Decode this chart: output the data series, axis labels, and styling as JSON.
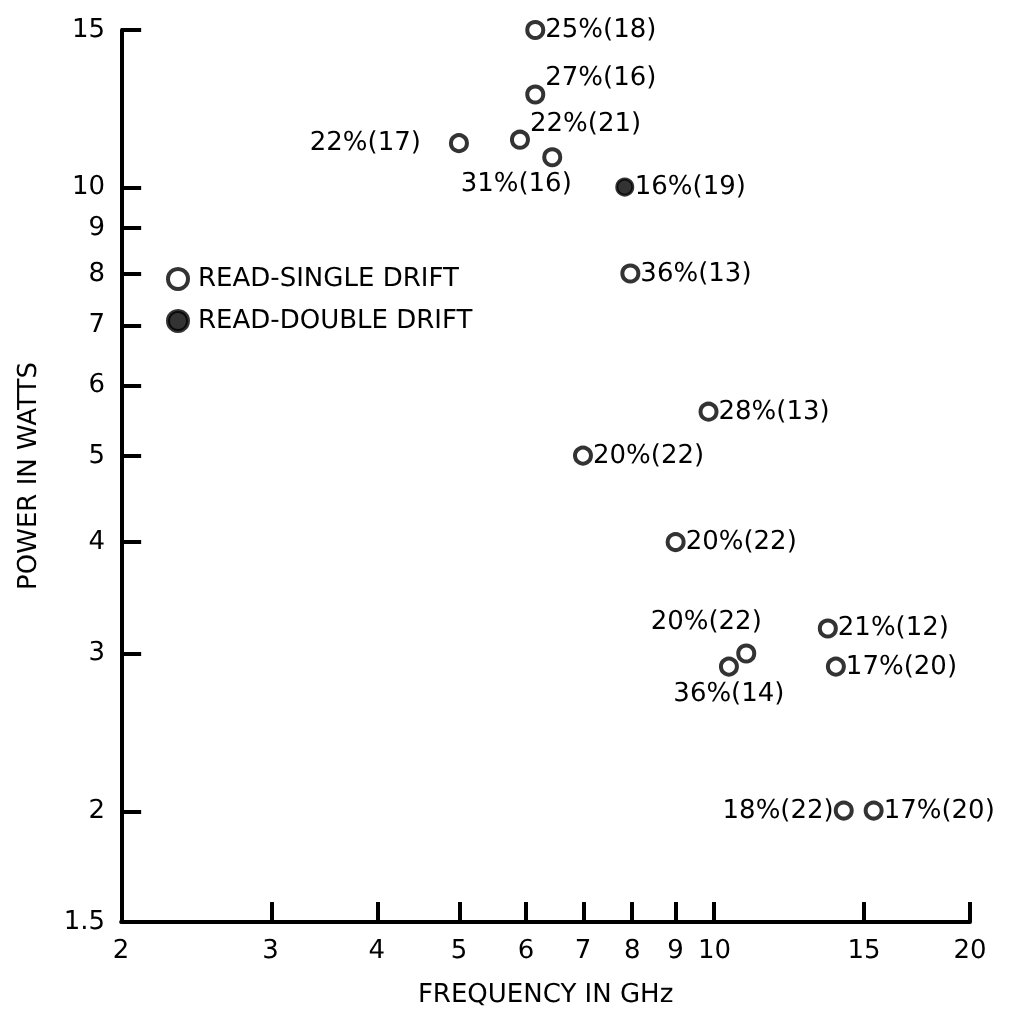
{
  "chart_data": {
    "type": "scatter",
    "xlabel": "FREQUENCY IN GHz",
    "ylabel": "POWER IN WATTS",
    "log": "xy",
    "grid": false,
    "legend": "top left",
    "marker": "circle",
    "xlim": [
      2,
      20
    ],
    "xticks": [
      2,
      3,
      4,
      5,
      6,
      7,
      8,
      9,
      10,
      15,
      20
    ],
    "ylim": [
      1.5,
      15
    ],
    "yticks": [
      1.5,
      2,
      3,
      4,
      5,
      6,
      7,
      8,
      9,
      10,
      15
    ],
    "series": [
      {
        "name": "READ-SINGLE DRIFT",
        "color": "#000000",
        "x": [
          6.15,
          6.15,
          5.9,
          5.0,
          6.44,
          7.96,
          9.84,
          7.0,
          9.0,
          10.9,
          10.4,
          13.6,
          13.9,
          14.2,
          15.4
        ],
        "values": [
          15,
          12.7,
          11.3,
          11.2,
          10.8,
          8,
          5.6,
          5,
          4,
          3,
          2.9,
          3.2,
          2.9,
          2,
          2
        ]
      },
      {
        "name": "READ-DOUBLE DRIFT",
        "color": "#000000",
        "x": [
          7.84
        ],
        "values": [
          10
        ]
      }
    ],
    "annotations": [
      {
        "text": "25%(18)",
        "x": 6.15,
        "y": 15
      },
      {
        "text": "27%(16)",
        "x": 6.15,
        "y": 12.7
      },
      {
        "text": "22%(21)",
        "x": 5.9,
        "y": 11.3
      },
      {
        "text": "22%(17)",
        "x": 5.0,
        "y": 11.2
      },
      {
        "text": "31%(16)",
        "x": 6.44,
        "y": 10.8
      },
      {
        "text": "16%(19)",
        "x": 7.84,
        "y": 10
      },
      {
        "text": "36%(13)",
        "x": 7.96,
        "y": 8
      },
      {
        "text": "28%(13)",
        "x": 9.84,
        "y": 5.6
      },
      {
        "text": "20%(22)",
        "x": 7.0,
        "y": 5
      },
      {
        "text": "20%(22)",
        "x": 9.0,
        "y": 4
      },
      {
        "text": "20%(22)",
        "x": 10.9,
        "y": 3
      },
      {
        "text": "36%(14)",
        "x": 10.4,
        "y": 2.9
      },
      {
        "text": "21%(12)",
        "x": 13.6,
        "y": 3.2
      },
      {
        "text": "17%(20)",
        "x": 13.9,
        "y": 2.9
      },
      {
        "text": "18%(22)",
        "x": 14.2,
        "y": 2
      },
      {
        "text": "17%(20)",
        "x": 15.4,
        "y": 2
      }
    ]
  }
}
